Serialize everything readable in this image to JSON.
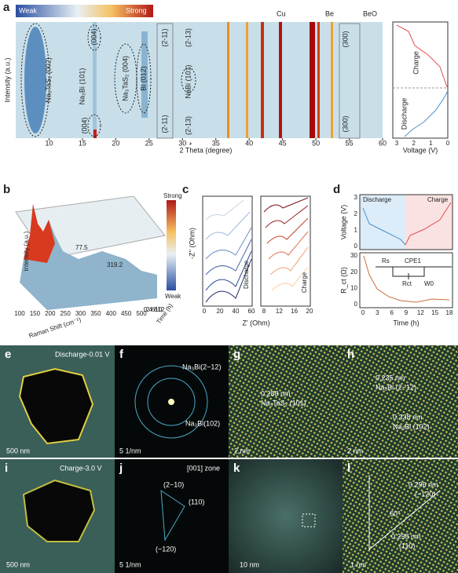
{
  "panel_a": {
    "label": "a",
    "colorbar": [
      "Weak",
      "Strong"
    ],
    "ylabel": "Intensity (a.u.)",
    "xlabel": "2 Theta (degree)",
    "xlim": [
      5,
      60
    ],
    "xticks": [
      10,
      15,
      20,
      25,
      30,
      35,
      40,
      45,
      50,
      55,
      60
    ],
    "legend": [
      "Cu",
      "Be",
      "BeO"
    ],
    "annotations": [
      "Na₃TaS₂ (002)",
      "(004)",
      "Na₃Bi (101)",
      "Na₃TaS₂ (004)",
      "Bi (012)",
      "(2-11)",
      "(2-11)",
      "(2-13)",
      "NaBi (101)",
      "(2-13)",
      "(004)",
      "(300)",
      "(300)"
    ],
    "voltage": {
      "xlabel": "Voltage (V)",
      "xticks": [
        3,
        2,
        1,
        0
      ],
      "labels": [
        "Charge",
        "Discharge"
      ]
    }
  },
  "panel_b": {
    "label": "b",
    "zlabel": "Intensity (a.u.)",
    "xlabel": "Raman Shift (cm⁻¹)",
    "ylabel": "Time (h)",
    "colorbar": [
      "Strong",
      "Weak"
    ],
    "peaks": [
      "77.5",
      "319.2"
    ],
    "xticks": [
      100,
      150,
      200,
      250,
      300,
      350,
      400,
      450,
      500
    ],
    "yticks": [
      0,
      2,
      4,
      6,
      8,
      10,
      12
    ]
  },
  "panel_c": {
    "label": "c",
    "ylabel": "-Z'' (Ohm)",
    "xlabel": "Z' (Ohm)",
    "left_xticks": [
      0,
      20,
      40,
      60
    ],
    "right_xticks": [
      8,
      12,
      16,
      20
    ],
    "labels": [
      "Discharge",
      "Charge"
    ]
  },
  "panel_d": {
    "label": "d",
    "top_ylabel": "Voltage (V)",
    "top_yticks": [
      3,
      2,
      1,
      0
    ],
    "legend": [
      "Discharge",
      "Charge"
    ],
    "bottom_ylabel": "R_ct (Ω)",
    "bottom_yticks": [
      30,
      20,
      10,
      0
    ],
    "xticks": [
      0,
      3,
      6,
      9,
      12,
      15,
      18
    ],
    "xlabel": "Time (h)",
    "circuit": [
      "Rs",
      "CPE1",
      "Rct",
      "W0"
    ]
  },
  "panel_e": {
    "label": "e",
    "title": "Discharge-0.01 V",
    "scale": "500 nm"
  },
  "panel_f": {
    "label": "f",
    "rings": [
      "Na₃Bi(2−12)",
      "Na₃Bi(102)"
    ],
    "scale": "5 1/nm"
  },
  "panel_g": {
    "label": "g",
    "d": "0.288 nm",
    "plane": "Na₃TaS₂ (101)",
    "scale": "2 nm"
  },
  "panel_h": {
    "label": "h",
    "texts": [
      "0.235 nm",
      "Na₃Bi (2−12)",
      "0.338 nm",
      "Na₃Bi (102)"
    ],
    "scale": "2 nm"
  },
  "panel_i": {
    "label": "i",
    "title": "Charge-3.0 V",
    "scale": "500 nm"
  },
  "panel_j": {
    "label": "j",
    "zone": "[001] zone",
    "spots": [
      "(2−10)",
      "(110)",
      "(−120)"
    ],
    "scale": "5 1/nm"
  },
  "panel_k": {
    "label": "k",
    "scale": "10 nm"
  },
  "panel_l": {
    "label": "l",
    "texts": [
      "0.296 nm",
      "(−120)",
      "60°",
      "0.298 nm",
      "(110)"
    ],
    "scale": "1 nm"
  }
}
